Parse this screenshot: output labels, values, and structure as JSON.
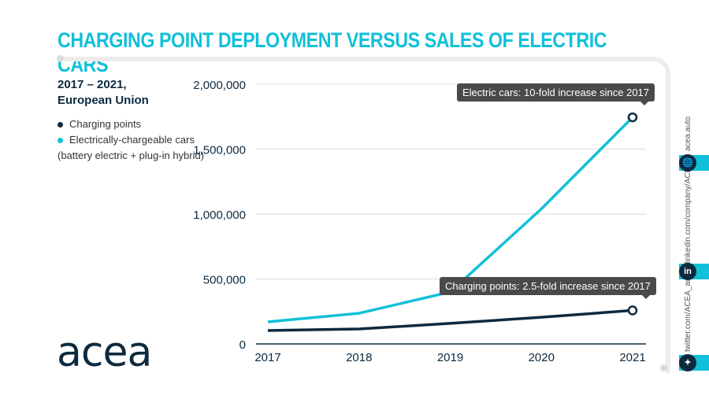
{
  "title": "CHARGING POINT DEPLOYMENT VERSUS SALES OF ELECTRIC CARS",
  "subtitle_line1": "2017 – 2021,",
  "subtitle_line2": "European Union",
  "legend": {
    "charging": "Charging points",
    "cars": "Electrically-chargeable cars",
    "cars_note": "(battery electric + plug-in hybrid)"
  },
  "logo": "acea",
  "social": {
    "web": "acea.auto",
    "linkedin": "linkedin.com/company/ACEA/",
    "twitter": "twitter.com/ACEA_auto",
    "linkedin_glyph": "in"
  },
  "colors": {
    "cars": "#11c0d9",
    "charging": "#0d2a3f",
    "accent": "#11c0d9"
  },
  "chart_data": {
    "type": "line",
    "title": "CHARGING POINT DEPLOYMENT VERSUS SALES OF ELECTRIC CARS",
    "categories": [
      "2017",
      "2018",
      "2019",
      "2020",
      "2021"
    ],
    "ylim": [
      0,
      2000000
    ],
    "yticks": [
      0,
      500000,
      1000000,
      1500000,
      2000000
    ],
    "ytick_labels": [
      "0",
      "500,000",
      "1,000,000",
      "1,500,000",
      "2,000,000"
    ],
    "grid": true,
    "legend_placement": "top-left",
    "series": [
      {
        "name": "Electrically-chargeable cars",
        "values": [
          170000,
          236000,
          400000,
          1040000,
          1745000
        ],
        "color": "#11c0d9"
      },
      {
        "name": "Charging points",
        "values": [
          103000,
          115000,
          158000,
          205000,
          258000
        ],
        "color": "#0d2a3f"
      }
    ],
    "annotations": [
      "Electric cars: 10-fold increase since 2017",
      "Charging points: 2.5-fold increase since 2017"
    ]
  }
}
